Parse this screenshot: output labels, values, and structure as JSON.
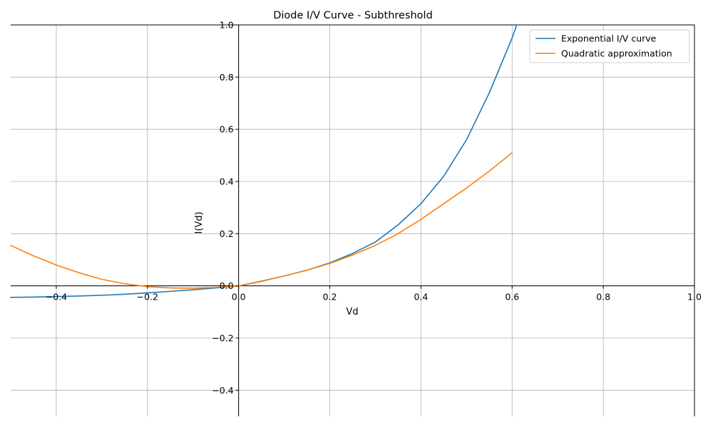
{
  "chart_data": {
    "type": "line",
    "title": "Diode I/V Curve - Subthreshold",
    "xlabel": "Vd",
    "ylabel": "I(Vd)",
    "xlim": [
      -0.5,
      1.0
    ],
    "ylim": [
      -0.5,
      1.0
    ],
    "grid": true,
    "legend_position": "upper right",
    "x_ticks": [
      -0.4,
      -0.2,
      0.0,
      0.2,
      0.4,
      0.6,
      0.8,
      1.0
    ],
    "x_tick_labels": [
      "−0.4",
      "−0.2",
      "0.0",
      "0.2",
      "0.4",
      "0.6",
      "0.8",
      "1.0"
    ],
    "y_ticks": [
      -0.4,
      -0.2,
      0.0,
      0.2,
      0.4,
      0.6,
      0.8,
      1.0
    ],
    "y_tick_labels": [
      "−0.4",
      "−0.2",
      "0.0",
      "0.2",
      "0.4",
      "0.6",
      "0.8",
      "1.0"
    ],
    "series": [
      {
        "name": "Exponential I/V curve",
        "color": "#1f77b4",
        "x": [
          -0.5,
          -0.45,
          -0.4,
          -0.35,
          -0.3,
          -0.25,
          -0.2,
          -0.15,
          -0.1,
          -0.05,
          0.0,
          0.05,
          0.1,
          0.15,
          0.2,
          0.25,
          0.3,
          0.35,
          0.4,
          0.45,
          0.5,
          0.55,
          0.6,
          0.61
        ],
        "y": [
          -0.044,
          -0.043,
          -0.041,
          -0.039,
          -0.036,
          -0.032,
          -0.027,
          -0.021,
          -0.015,
          -0.008,
          0.0,
          0.018,
          0.038,
          0.06,
          0.088,
          0.124,
          0.168,
          0.234,
          0.315,
          0.42,
          0.56,
          0.74,
          0.95,
          1.0
        ]
      },
      {
        "name": "Quadratic approximation",
        "color": "#ff7f0e",
        "x": [
          -0.5,
          -0.45,
          -0.4,
          -0.35,
          -0.3,
          -0.25,
          -0.2,
          -0.15,
          -0.1,
          -0.05,
          0.0,
          0.05,
          0.1,
          0.15,
          0.2,
          0.25,
          0.3,
          0.35,
          0.4,
          0.45,
          0.5,
          0.55,
          0.6
        ],
        "y": [
          0.155,
          0.115,
          0.08,
          0.05,
          0.025,
          0.008,
          -0.003,
          -0.008,
          -0.009,
          -0.006,
          0.0,
          0.017,
          0.038,
          0.06,
          0.086,
          0.118,
          0.155,
          0.2,
          0.255,
          0.315,
          0.375,
          0.44,
          0.51
        ]
      }
    ]
  }
}
